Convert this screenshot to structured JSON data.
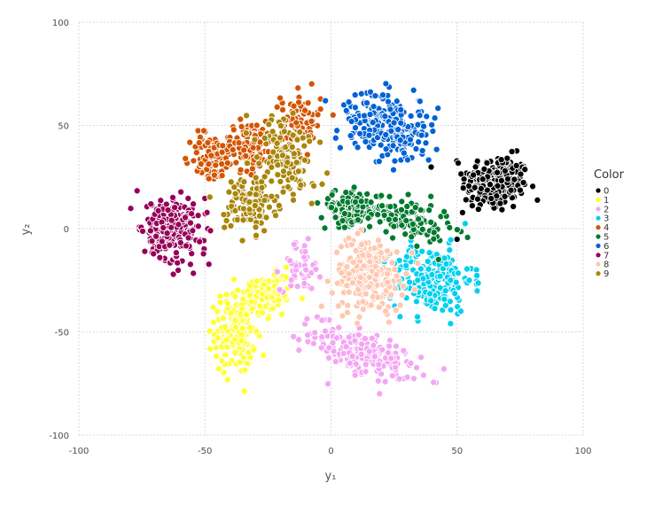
{
  "chart_data": {
    "type": "scatter",
    "title": "",
    "xlabel": "y₁",
    "ylabel": "y₂",
    "xlim": [
      -100,
      100
    ],
    "ylim": [
      -100,
      100
    ],
    "xticks": [
      "-100",
      "-50",
      "0",
      "50",
      "100"
    ],
    "yticks": [
      "100",
      "50",
      "0",
      "-50",
      "-100"
    ],
    "grid": true,
    "legend": {
      "title": "Color",
      "position": "right"
    },
    "series": [
      {
        "name": "0",
        "color": "#000000",
        "clusters": [
          {
            "cx": 65,
            "cy": 22,
            "sx": 6.5,
            "sy": 7,
            "n": 240,
            "rot": -10
          }
        ]
      },
      {
        "name": "1",
        "color": "#ffff33",
        "clusters": [
          {
            "cx": -38,
            "cy": -50,
            "sx": 4,
            "sy": 10,
            "n": 170,
            "rot": 0
          },
          {
            "cx": -25,
            "cy": -32,
            "sx": 6,
            "sy": 4,
            "n": 110,
            "rot": 30
          }
        ]
      },
      {
        "name": "2",
        "color": "#f4a6f4",
        "clusters": [
          {
            "cx": 12,
            "cy": -60,
            "sx": 11,
            "sy": 5,
            "n": 200,
            "rot": -25
          },
          {
            "cx": -12,
            "cy": -18,
            "sx": 4,
            "sy": 6,
            "n": 50,
            "rot": 0
          }
        ]
      },
      {
        "name": "3",
        "color": "#00d0f0",
        "clusters": [
          {
            "cx": 40,
            "cy": -25,
            "sx": 8,
            "sy": 8,
            "n": 230,
            "rot": 0
          }
        ]
      },
      {
        "name": "4",
        "color": "#d45500",
        "clusters": [
          {
            "cx": -48,
            "cy": 35,
            "sx": 4,
            "sy": 6,
            "n": 90,
            "rot": 0
          },
          {
            "cx": -33,
            "cy": 40,
            "sx": 5,
            "sy": 6,
            "n": 110,
            "rot": 0
          },
          {
            "cx": -12,
            "cy": 52,
            "sx": 4,
            "sy": 7,
            "n": 90,
            "rot": 0
          }
        ]
      },
      {
        "name": "5",
        "color": "#007a2e",
        "clusters": [
          {
            "cx": 8,
            "cy": 10,
            "sx": 6,
            "sy": 4,
            "n": 120,
            "rot": 0
          },
          {
            "cx": 30,
            "cy": 5,
            "sx": 9,
            "sy": 5,
            "n": 130,
            "rot": -20
          }
        ]
      },
      {
        "name": "6",
        "color": "#0062d6",
        "clusters": [
          {
            "cx": 22,
            "cy": 50,
            "sx": 9,
            "sy": 7,
            "n": 250,
            "rot": -30
          }
        ]
      },
      {
        "name": "7",
        "color": "#96005a",
        "clusters": [
          {
            "cx": -63,
            "cy": 0,
            "sx": 6,
            "sy": 8,
            "n": 230,
            "rot": 20
          }
        ]
      },
      {
        "name": "8",
        "color": "#ffc8b0",
        "clusters": [
          {
            "cx": 15,
            "cy": -22,
            "sx": 7,
            "sy": 9,
            "n": 230,
            "rot": 0
          }
        ]
      },
      {
        "name": "9",
        "color": "#a8860a",
        "clusters": [
          {
            "cx": -32,
            "cy": 12,
            "sx": 5,
            "sy": 7,
            "n": 120,
            "rot": 0
          },
          {
            "cx": -18,
            "cy": 35,
            "sx": 5,
            "sy": 10,
            "n": 130,
            "rot": 20
          }
        ]
      }
    ]
  }
}
